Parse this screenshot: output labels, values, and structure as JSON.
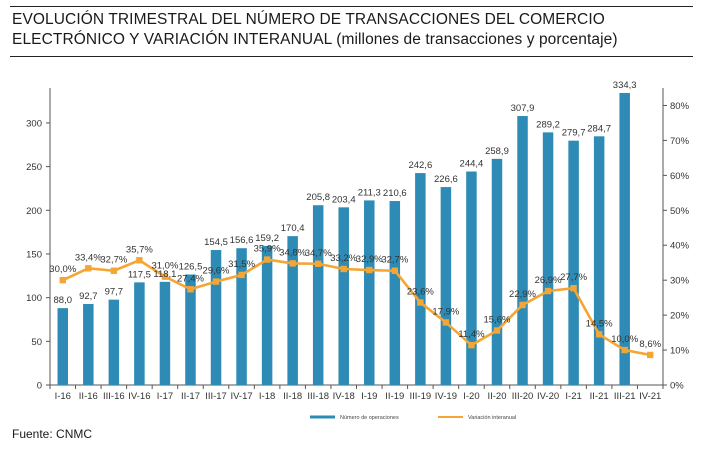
{
  "title_line1": "EVOLUCIÓN TRIMESTRAL DEL NÚMERO DE TRANSACCIONES DEL COMERCIO",
  "title_line2_caps": "ELECTRÓNICO Y VARIACIÓN INTERANUAL",
  "title_line2_rest": " (millones de transacciones y porcentaje)",
  "source": "Fuente: CNMC",
  "colors": {
    "bar": "#2e8bb5",
    "line": "#f5a533"
  },
  "chart_data": {
    "type": "bar",
    "categories": [
      "I-16",
      "II-16",
      "III-16",
      "IV-16",
      "I-17",
      "II-17",
      "III-17",
      "IV-17",
      "I-18",
      "II-18",
      "III-18",
      "IV-18",
      "I-19",
      "II-19",
      "III-19",
      "IV-19",
      "I-20",
      "II-20",
      "III-20",
      "IV-20",
      "I-21",
      "II-21",
      "III-21",
      "IV-21"
    ],
    "series": [
      {
        "name": "Número de operaciones",
        "type": "bar",
        "axis": "left",
        "values": [
          88.0,
          92.7,
          97.7,
          117.5,
          118.1,
          126.5,
          154.5,
          156.6,
          159.2,
          170.4,
          205.8,
          203.4,
          211.3,
          210.6,
          242.6,
          226.6,
          244.4,
          258.9,
          307.9,
          289.2,
          279.7,
          284.7,
          334.3,
          null
        ],
        "labels": [
          "88,0",
          "92,7",
          "97,7",
          "117,5",
          "118,1",
          "126,5",
          "154,5",
          "156,6",
          "159,2",
          "170,4",
          "205,8",
          "203,4",
          "211,3",
          "210,6",
          "242,6",
          "226,6",
          "244,4",
          "258,9",
          "307,9",
          "289,2",
          "279,7",
          "284,7",
          "334,3",
          ""
        ]
      },
      {
        "name": "Variación interanual",
        "type": "line",
        "axis": "right",
        "values": [
          30.0,
          33.4,
          32.7,
          35.7,
          31.0,
          27.4,
          29.6,
          31.5,
          35.9,
          34.8,
          34.7,
          33.2,
          32.9,
          32.7,
          23.6,
          17.9,
          11.4,
          15.6,
          22.9,
          26.9,
          27.7,
          14.5,
          10.0,
          8.6
        ],
        "labels": [
          "30,0%",
          "33,4%",
          "32,7%",
          "35,7%",
          "31,0%",
          "27,4%",
          "29,6%",
          "31,5%",
          "35,9%",
          "34,8%",
          "34,7%",
          "33,2%",
          "32,9%",
          "32,7%",
          "23,6%",
          "17,9%",
          "11,4%",
          "15,6%",
          "22,9%",
          "26,9%",
          "27,7%",
          "14,5%",
          "10,0%",
          "8,6%"
        ]
      }
    ],
    "bar_values_plotted": [
      88.0,
      92.7,
      97.7,
      117.5,
      118.1,
      126.5,
      154.5,
      156.6,
      159.2,
      170.4,
      205.8,
      203.4,
      211.3,
      210.6,
      242.6,
      226.6,
      244.4,
      258.9,
      307.9,
      289.2,
      279.7,
      284.7,
      334.3
    ],
    "y_left": {
      "min": 0,
      "max": 340,
      "ticks": [
        "0",
        "50",
        "100",
        "150",
        "200",
        "250",
        "300"
      ]
    },
    "y_right": {
      "min": 0,
      "max": 85,
      "ticks": [
        "0%",
        "10%",
        "20%",
        "30%",
        "40%",
        "50%",
        "60%",
        "70%",
        "80%"
      ]
    },
    "legend": {
      "position": "bottom",
      "items": [
        "Número de operaciones",
        "Variación interanual"
      ]
    }
  }
}
